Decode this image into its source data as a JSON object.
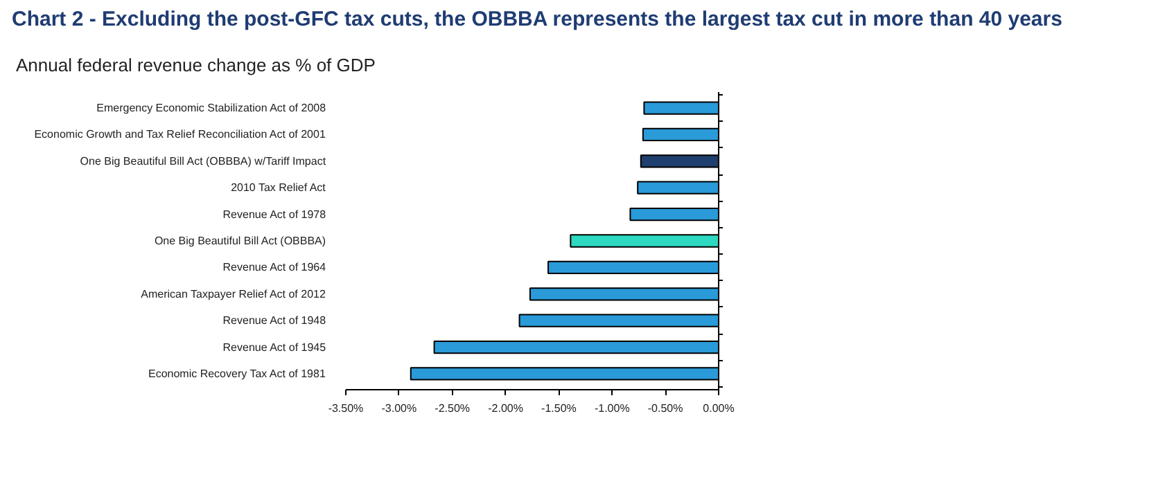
{
  "chart_data": {
    "type": "bar",
    "orientation": "horizontal",
    "title": "Chart 2 - Excluding the post-GFC tax cuts, the OBBBA represents the largest tax cut in more than 40 years",
    "subtitle": "Annual federal revenue change as % of GDP",
    "categories": [
      "Emergency Economic Stabilization Act of 2008",
      "Economic Growth and Tax Relief Reconciliation Act of 2001",
      "One Big Beautiful Bill Act (OBBBA) w/Tariff Impact",
      "2010 Tax Relief Act",
      "Revenue Act of 1978",
      "One Big Beautiful Bill Act (OBBBA)",
      "Revenue Act of 1964",
      "American Taxpayer Relief Act of 2012",
      "Revenue Act of 1948",
      "Revenue Act of 1945",
      "Economic Recovery Tax Act of 1981"
    ],
    "values": [
      -0.7,
      -0.71,
      -0.73,
      -0.76,
      -0.83,
      -1.39,
      -1.6,
      -1.77,
      -1.87,
      -2.67,
      -2.89
    ],
    "colors": [
      "#2a9ad8",
      "#2a9ad8",
      "#1f3f6e",
      "#2a9ad8",
      "#2a9ad8",
      "#2dd9c0",
      "#2a9ad8",
      "#2a9ad8",
      "#2a9ad8",
      "#2a9ad8",
      "#2a9ad8"
    ],
    "xlim": [
      -3.5,
      0
    ],
    "xticks": [
      {
        "value": -3.5,
        "label": "-3.50%"
      },
      {
        "value": -3.0,
        "label": "-3.00%"
      },
      {
        "value": -2.5,
        "label": "-2.50%"
      },
      {
        "value": -2.0,
        "label": "-2.00%"
      },
      {
        "value": -1.5,
        "label": "-1.50%"
      },
      {
        "value": -1.0,
        "label": "-1.00%"
      },
      {
        "value": -0.5,
        "label": "-0.50%"
      },
      {
        "value": 0,
        "label": "0.00%"
      }
    ],
    "grid": false
  }
}
